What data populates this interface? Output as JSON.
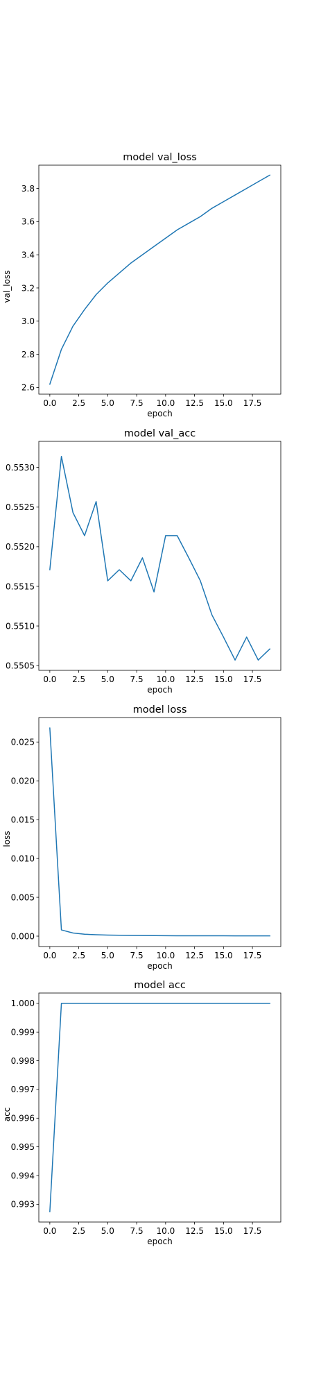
{
  "chart_data": [
    {
      "type": "line",
      "title": "model val_loss",
      "xlabel": "epoch",
      "ylabel": "val_loss",
      "xlim": [
        -0.95,
        19.95
      ],
      "ylim": [
        2.56,
        3.94
      ],
      "xticks": [
        0.0,
        2.5,
        5.0,
        7.5,
        10.0,
        12.5,
        15.0,
        17.5
      ],
      "xtick_labels": [
        "0.0",
        "2.5",
        "5.0",
        "7.5",
        "10.0",
        "12.5",
        "15.0",
        "17.5"
      ],
      "yticks": [
        2.6,
        2.8,
        3.0,
        3.2,
        3.4,
        3.6,
        3.8
      ],
      "ytick_labels": [
        "2.6",
        "2.8",
        "3.0",
        "3.2",
        "3.4",
        "3.6",
        "3.8"
      ],
      "grid": false,
      "series": [
        {
          "color": "#1f77b4",
          "x": [
            0,
            1,
            2,
            3,
            4,
            5,
            6,
            7,
            8,
            9,
            10,
            11,
            12,
            13,
            14,
            15,
            16,
            17,
            18,
            19
          ],
          "y": [
            2.62,
            2.83,
            2.97,
            3.07,
            3.16,
            3.23,
            3.29,
            3.35,
            3.4,
            3.45,
            3.5,
            3.55,
            3.59,
            3.63,
            3.68,
            3.72,
            3.76,
            3.8,
            3.84,
            3.88
          ]
        }
      ]
    },
    {
      "type": "line",
      "title": "model val_acc",
      "xlabel": "epoch",
      "ylabel": "",
      "xlim": [
        -0.95,
        19.95
      ],
      "ylim": [
        0.55044,
        0.55333
      ],
      "xticks": [
        0.0,
        2.5,
        5.0,
        7.5,
        10.0,
        12.5,
        15.0,
        17.5
      ],
      "xtick_labels": [
        "0.0",
        "2.5",
        "5.0",
        "7.5",
        "10.0",
        "12.5",
        "15.0",
        "17.5"
      ],
      "yticks": [
        0.5505,
        0.551,
        0.5515,
        0.552,
        0.5525,
        0.553
      ],
      "ytick_labels": [
        "0.5505",
        "0.5510",
        "0.5515",
        "0.5520",
        "0.5525",
        "0.5530"
      ],
      "grid": false,
      "series": [
        {
          "color": "#1f77b4",
          "x": [
            0,
            1,
            2,
            3,
            4,
            5,
            6,
            7,
            8,
            9,
            10,
            11,
            12,
            13,
            14,
            15,
            16,
            17,
            18,
            19
          ],
          "y": [
            0.55171,
            0.55314,
            0.55243,
            0.55214,
            0.55257,
            0.55157,
            0.55171,
            0.55157,
            0.55186,
            0.55143,
            0.55214,
            0.55214,
            0.55186,
            0.55157,
            0.55114,
            0.55086,
            0.55057,
            0.55086,
            0.55057,
            0.55071
          ]
        }
      ]
    },
    {
      "type": "line",
      "title": "model loss",
      "xlabel": "epoch",
      "ylabel": "loss",
      "xlim": [
        -0.95,
        19.95
      ],
      "ylim": [
        -0.00134,
        0.02815
      ],
      "xticks": [
        0.0,
        2.5,
        5.0,
        7.5,
        10.0,
        12.5,
        15.0,
        17.5
      ],
      "xtick_labels": [
        "0.0",
        "2.5",
        "5.0",
        "7.5",
        "10.0",
        "12.5",
        "15.0",
        "17.5"
      ],
      "yticks": [
        0.0,
        0.005,
        0.01,
        0.015,
        0.02,
        0.025
      ],
      "ytick_labels": [
        "0.000",
        "0.005",
        "0.010",
        "0.015",
        "0.020",
        "0.025"
      ],
      "grid": false,
      "series": [
        {
          "color": "#1f77b4",
          "x": [
            0,
            1,
            2,
            3,
            4,
            5,
            6,
            7,
            8,
            9,
            10,
            11,
            12,
            13,
            14,
            15,
            16,
            17,
            18,
            19
          ],
          "y": [
            0.0268,
            0.0008,
            0.0004,
            0.00025,
            0.00018,
            0.00014,
            0.00011,
            9e-05,
            8e-05,
            7e-05,
            6e-05,
            5e-05,
            5e-05,
            4e-05,
            4e-05,
            4e-05,
            3e-05,
            3e-05,
            3e-05,
            3e-05
          ]
        }
      ]
    },
    {
      "type": "line",
      "title": "model acc",
      "xlabel": "epoch",
      "ylabel": "acc",
      "xlim": [
        -0.95,
        19.95
      ],
      "ylim": [
        0.99238,
        1.00036
      ],
      "xticks": [
        0.0,
        2.5,
        5.0,
        7.5,
        10.0,
        12.5,
        15.0,
        17.5
      ],
      "xtick_labels": [
        "0.0",
        "2.5",
        "5.0",
        "7.5",
        "10.0",
        "12.5",
        "15.0",
        "17.5"
      ],
      "yticks": [
        0.993,
        0.994,
        0.995,
        0.996,
        0.997,
        0.998,
        0.999,
        1.0
      ],
      "ytick_labels": [
        "0.993",
        "0.994",
        "0.995",
        "0.996",
        "0.997",
        "0.998",
        "0.999",
        "1.000"
      ],
      "grid": false,
      "series": [
        {
          "color": "#1f77b4",
          "x": [
            0,
            1,
            2,
            3,
            4,
            5,
            6,
            7,
            8,
            9,
            10,
            11,
            12,
            13,
            14,
            15,
            16,
            17,
            18,
            19
          ],
          "y": [
            0.99274,
            1.0,
            1.0,
            1.0,
            1.0,
            1.0,
            1.0,
            1.0,
            1.0,
            1.0,
            1.0,
            1.0,
            1.0,
            1.0,
            1.0,
            1.0,
            1.0,
            1.0,
            1.0,
            1.0
          ]
        }
      ]
    }
  ]
}
